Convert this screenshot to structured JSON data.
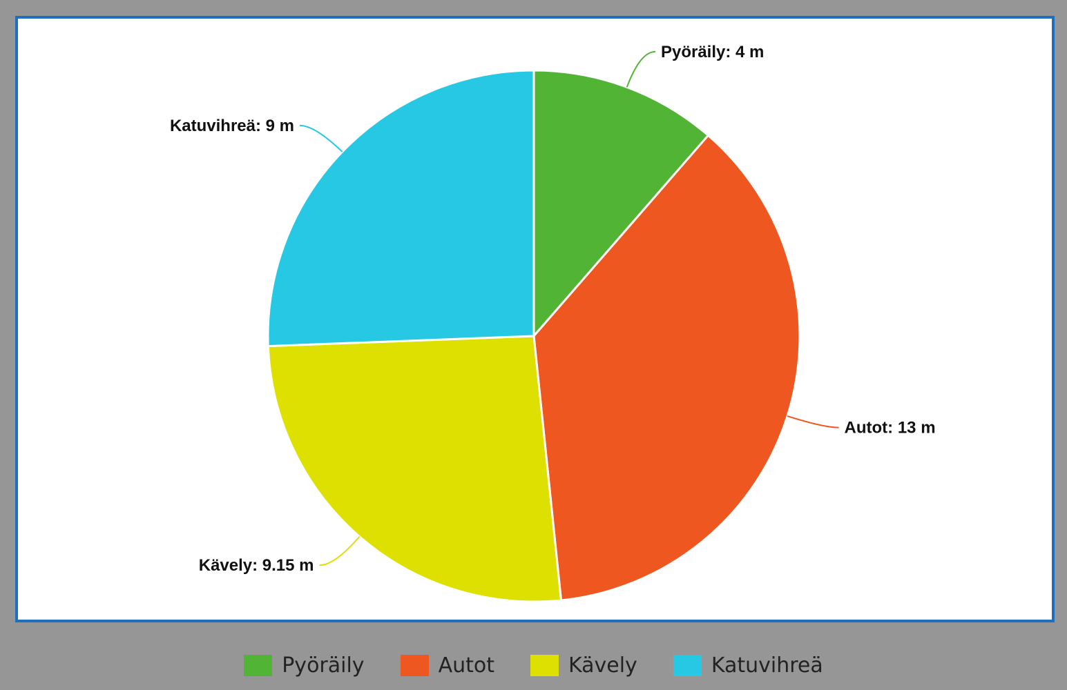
{
  "chart_data": {
    "type": "pie",
    "unit": "m",
    "slices": [
      {
        "name": "Pyöräily",
        "value": 4,
        "label": "Pyöräily: 4 m",
        "color": "#52b435"
      },
      {
        "name": "Autot",
        "value": 13,
        "label": "Autot: 13 m",
        "color": "#ee571f"
      },
      {
        "name": "Kävely",
        "value": 9.15,
        "label": "Kävely: 9.15 m",
        "color": "#dde000"
      },
      {
        "name": "Katuvihreä",
        "value": 9,
        "label": "Katuvihreä: 9 m",
        "color": "#26c8e4"
      }
    ],
    "legend_position": "bottom"
  }
}
